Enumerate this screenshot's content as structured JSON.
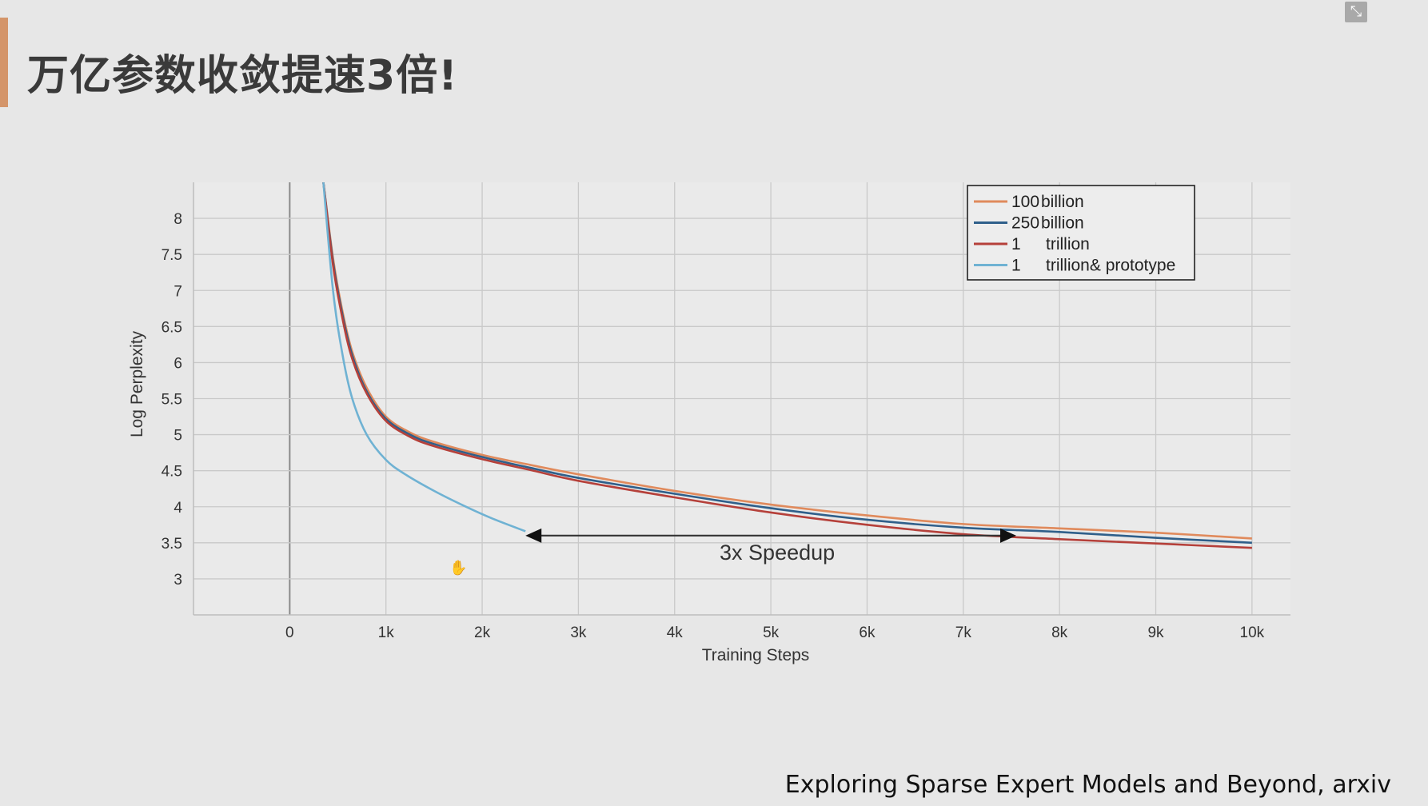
{
  "slide": {
    "title": "万亿参数收敛提速3倍!",
    "citation": "Exploring Sparse Expert Models and Beyond, arxiv",
    "exit_icon": "exit-fullscreen-icon",
    "accent_color": "#d4956a"
  },
  "chart_data": {
    "type": "line",
    "title": "",
    "xlabel": "Training Steps",
    "ylabel": "Log Perplexity",
    "xlim": [
      -1000,
      10400
    ],
    "ylim": [
      2.5,
      8.5
    ],
    "xticks": [
      0,
      1000,
      2000,
      3000,
      4000,
      5000,
      6000,
      7000,
      8000,
      9000,
      10000
    ],
    "xtick_labels": [
      "0",
      "1k",
      "2k",
      "3k",
      "4k",
      "5k",
      "6k",
      "7k",
      "8k",
      "9k",
      "10k"
    ],
    "yticks": [
      3,
      3.5,
      4,
      4.5,
      5,
      5.5,
      6,
      6.5,
      7,
      7.5,
      8
    ],
    "ytick_labels": [
      "3",
      "3.5",
      "4",
      "4.5",
      "5",
      "5.5",
      "6",
      "6.5",
      "7",
      "7.5",
      "8"
    ],
    "grid": true,
    "legend_position": "top-right",
    "legend": [
      {
        "num": "100",
        "unit": "billion",
        "color": "#e08a5c"
      },
      {
        "num": "250",
        "unit": "billion",
        "color": "#2f5f8a"
      },
      {
        "num": "1",
        "unit": "trillion",
        "color": "#b5403a"
      },
      {
        "num": "1",
        "unit": "trillion& prototype",
        "color": "#6fb2d3"
      }
    ],
    "series": [
      {
        "color": "#e08a5c",
        "x": [
          350,
          450,
          550,
          650,
          800,
          1000,
          1250,
          1500,
          2000,
          2500,
          3000,
          4000,
          5000,
          6000,
          7000,
          8000,
          9000,
          10000
        ],
        "y": [
          8.5,
          7.45,
          6.7,
          6.15,
          5.65,
          5.25,
          5.03,
          4.9,
          4.72,
          4.58,
          4.45,
          4.22,
          4.03,
          3.88,
          3.76,
          3.7,
          3.64,
          3.56
        ]
      },
      {
        "color": "#2f5f8a",
        "x": [
          350,
          450,
          550,
          650,
          800,
          1000,
          1250,
          1500,
          2000,
          2500,
          3000,
          4000,
          5000,
          6000,
          7000,
          8000,
          9000,
          10000
        ],
        "y": [
          8.5,
          7.4,
          6.65,
          6.1,
          5.6,
          5.22,
          5.0,
          4.87,
          4.69,
          4.54,
          4.4,
          4.18,
          3.98,
          3.82,
          3.71,
          3.65,
          3.57,
          3.5
        ]
      },
      {
        "color": "#b5403a",
        "x": [
          350,
          450,
          550,
          650,
          800,
          1000,
          1250,
          1500,
          2000,
          2500,
          3000,
          4000,
          5000,
          6000,
          7000,
          8000,
          9000,
          10000
        ],
        "y": [
          8.5,
          7.35,
          6.6,
          6.05,
          5.57,
          5.19,
          4.97,
          4.84,
          4.66,
          4.51,
          4.36,
          4.13,
          3.92,
          3.75,
          3.62,
          3.55,
          3.49,
          3.43
        ]
      },
      {
        "color": "#6fb2d3",
        "x": [
          350,
          450,
          550,
          650,
          800,
          1000,
          1200,
          1500,
          1800,
          2100,
          2450
        ],
        "y": [
          8.5,
          7.0,
          6.1,
          5.5,
          5.0,
          4.65,
          4.45,
          4.22,
          4.02,
          3.84,
          3.66
        ]
      }
    ],
    "annotations": [
      {
        "text": "3x Speedup",
        "arrow_from": [
          2450,
          3.6
        ],
        "arrow_to": [
          7550,
          3.6
        ]
      }
    ]
  }
}
